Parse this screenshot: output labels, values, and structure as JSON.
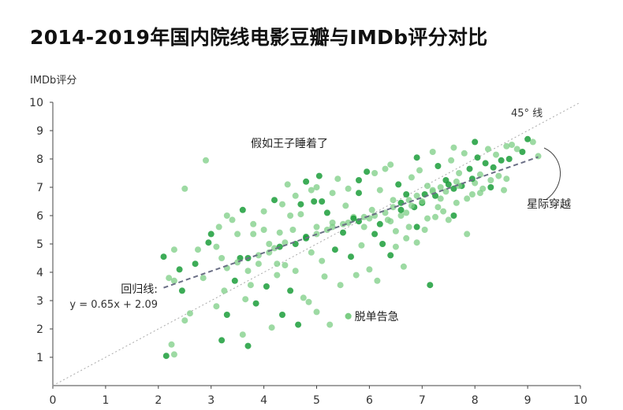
{
  "page": {
    "title": "2014-2019年国内院线电影豆瓣与IMDb评分对比"
  },
  "chart_data": {
    "type": "scatter",
    "title": "2014-2019年国内院线电影豆瓣与IMDb评分对比",
    "xlabel": "",
    "ylabel": "IMDb评分",
    "xlim": [
      0,
      10
    ],
    "ylim": [
      0,
      10
    ],
    "xticks": [
      "0",
      "1",
      "2",
      "3",
      "4",
      "5",
      "6",
      "7",
      "8",
      "9",
      "10"
    ],
    "yticks": [
      "1",
      "2",
      "3",
      "4",
      "5",
      "6",
      "7",
      "8",
      "9",
      "10"
    ],
    "grid": false,
    "colors": {
      "point_dark": "#1b9e3a",
      "point_light": "#7ccd84",
      "regression": "#6b6f86",
      "diagonal": "#aaaaaa"
    },
    "reference_line": {
      "label": "45° 线",
      "slope": 1,
      "intercept": 0
    },
    "regression": {
      "label": "回归线:",
      "equation": "y = 0.65x + 2.09",
      "slope": 0.65,
      "intercept": 2.09,
      "x_range": [
        2.1,
        9.2
      ]
    },
    "annotations": [
      {
        "text": "假如王子睡着了",
        "x": 2.9,
        "y": 7.95
      },
      {
        "text": "脱单告急",
        "x": 5.6,
        "y": 2.45
      },
      {
        "text": "星际穿越",
        "x": 9.2,
        "y": 8.6
      }
    ],
    "series": [
      {
        "values": [
          [
            2.15,
            1.05
          ],
          [
            2.3,
            1.1
          ],
          [
            2.25,
            1.45
          ],
          [
            2.1,
            4.55
          ],
          [
            2.3,
            4.8
          ],
          [
            2.5,
            6.95
          ],
          [
            2.45,
            3.35
          ],
          [
            2.6,
            2.55
          ],
          [
            2.5,
            2.3
          ],
          [
            2.7,
            4.3
          ],
          [
            2.9,
            7.95
          ],
          [
            2.85,
            3.8
          ],
          [
            3.0,
            5.35
          ],
          [
            3.1,
            4.9
          ],
          [
            3.1,
            2.8
          ],
          [
            3.2,
            1.6
          ],
          [
            3.25,
            3.35
          ],
          [
            3.3,
            6.0
          ],
          [
            3.3,
            2.5
          ],
          [
            3.4,
            5.85
          ],
          [
            3.5,
            5.35
          ],
          [
            3.55,
            4.5
          ],
          [
            3.6,
            1.8
          ],
          [
            3.65,
            3.05
          ],
          [
            3.7,
            1.4
          ],
          [
            3.7,
            4.05
          ],
          [
            3.8,
            5.35
          ],
          [
            3.85,
            2.9
          ],
          [
            3.9,
            4.3
          ],
          [
            4.0,
            6.15
          ],
          [
            4.05,
            3.5
          ],
          [
            4.1,
            5.0
          ],
          [
            4.15,
            2.05
          ],
          [
            4.2,
            6.55
          ],
          [
            4.25,
            3.9
          ],
          [
            4.3,
            5.4
          ],
          [
            4.35,
            2.5
          ],
          [
            4.4,
            4.25
          ],
          [
            4.45,
            7.1
          ],
          [
            4.5,
            3.35
          ],
          [
            4.55,
            5.5
          ],
          [
            4.6,
            4.05
          ],
          [
            4.65,
            2.15
          ],
          [
            4.7,
            6.05
          ],
          [
            4.75,
            3.1
          ],
          [
            4.8,
            5.2
          ],
          [
            4.85,
            2.95
          ],
          [
            4.9,
            4.7
          ],
          [
            4.95,
            6.5
          ],
          [
            5.0,
            2.6
          ],
          [
            5.0,
            5.6
          ],
          [
            5.05,
            7.4
          ],
          [
            5.1,
            4.4
          ],
          [
            5.15,
            3.85
          ],
          [
            5.2,
            6.1
          ],
          [
            5.25,
            2.15
          ],
          [
            5.3,
            5.75
          ],
          [
            5.35,
            4.8
          ],
          [
            5.4,
            7.3
          ],
          [
            5.45,
            3.55
          ],
          [
            5.5,
            5.4
          ],
          [
            5.55,
            6.35
          ],
          [
            5.6,
            2.45
          ],
          [
            5.65,
            4.55
          ],
          [
            5.7,
            5.95
          ],
          [
            5.75,
            3.9
          ],
          [
            5.8,
            6.8
          ],
          [
            5.85,
            4.95
          ],
          [
            5.9,
            5.6
          ],
          [
            5.95,
            7.55
          ],
          [
            6.0,
            4.1
          ],
          [
            6.05,
            6.2
          ],
          [
            6.1,
            5.35
          ],
          [
            6.15,
            3.7
          ],
          [
            6.2,
            6.9
          ],
          [
            6.25,
            5.0
          ],
          [
            6.3,
            7.65
          ],
          [
            6.35,
            5.85
          ],
          [
            6.4,
            4.6
          ],
          [
            6.45,
            6.55
          ],
          [
            6.5,
            5.45
          ],
          [
            6.55,
            7.1
          ],
          [
            6.6,
            6.0
          ],
          [
            6.65,
            4.2
          ],
          [
            6.7,
            6.75
          ],
          [
            6.75,
            5.6
          ],
          [
            6.8,
            7.35
          ],
          [
            6.85,
            6.3
          ],
          [
            6.9,
            5.05
          ],
          [
            6.95,
            7.6
          ],
          [
            7.0,
            6.45
          ],
          [
            7.05,
            5.5
          ],
          [
            7.1,
            7.05
          ],
          [
            7.15,
            3.55
          ],
          [
            7.2,
            6.85
          ],
          [
            7.25,
            5.95
          ],
          [
            7.3,
            7.75
          ],
          [
            7.35,
            6.6
          ],
          [
            7.4,
            6.15
          ],
          [
            7.45,
            7.25
          ],
          [
            7.5,
            5.85
          ],
          [
            7.55,
            7.95
          ],
          [
            7.6,
            6.95
          ],
          [
            7.65,
            6.45
          ],
          [
            7.7,
            7.5
          ],
          [
            7.75,
            7.05
          ],
          [
            7.8,
            8.2
          ],
          [
            7.85,
            5.35
          ],
          [
            7.9,
            7.65
          ],
          [
            7.95,
            6.75
          ],
          [
            8.0,
            7.15
          ],
          [
            8.05,
            8.05
          ],
          [
            8.1,
            7.45
          ],
          [
            8.15,
            6.95
          ],
          [
            8.2,
            7.85
          ],
          [
            8.25,
            8.35
          ],
          [
            8.3,
            7.25
          ],
          [
            8.35,
            7.7
          ],
          [
            8.4,
            8.15
          ],
          [
            8.45,
            7.4
          ],
          [
            8.5,
            7.95
          ],
          [
            8.55,
            6.9
          ],
          [
            8.6,
            8.45
          ],
          [
            8.65,
            8.0
          ],
          [
            8.7,
            8.5
          ],
          [
            8.8,
            8.35
          ],
          [
            8.9,
            8.25
          ],
          [
            9.1,
            8.6
          ],
          [
            9.2,
            8.1
          ],
          [
            9.0,
            8.7
          ],
          [
            6.3,
            6.1
          ],
          [
            6.45,
            6.3
          ],
          [
            6.6,
            6.45
          ],
          [
            6.75,
            6.55
          ],
          [
            6.9,
            6.7
          ],
          [
            7.05,
            6.75
          ],
          [
            7.2,
            6.9
          ],
          [
            7.35,
            7.0
          ],
          [
            7.5,
            7.1
          ],
          [
            7.65,
            7.2
          ],
          [
            5.5,
            5.7
          ],
          [
            5.7,
            5.9
          ],
          [
            5.9,
            5.95
          ],
          [
            6.1,
            6.0
          ],
          [
            4.8,
            5.25
          ],
          [
            5.0,
            5.35
          ],
          [
            5.2,
            5.5
          ],
          [
            4.6,
            5.0
          ],
          [
            4.4,
            5.05
          ],
          [
            4.2,
            4.85
          ],
          [
            6.2,
            5.7
          ],
          [
            6.4,
            5.8
          ],
          [
            6.0,
            5.9
          ],
          [
            6.6,
            6.2
          ],
          [
            6.8,
            6.35
          ],
          [
            7.0,
            6.5
          ],
          [
            7.25,
            6.7
          ],
          [
            7.45,
            6.85
          ],
          [
            7.7,
            7.05
          ],
          [
            7.95,
            7.3
          ],
          [
            3.3,
            4.15
          ],
          [
            3.5,
            4.35
          ],
          [
            3.7,
            4.5
          ],
          [
            3.9,
            4.6
          ],
          [
            4.1,
            4.7
          ],
          [
            4.3,
            4.9
          ],
          [
            5.3,
            5.6
          ],
          [
            5.6,
            5.75
          ],
          [
            5.8,
            5.8
          ],
          [
            6.7,
            6.1
          ],
          [
            2.3,
            3.7
          ],
          [
            2.4,
            4.1
          ],
          [
            2.2,
            3.8
          ],
          [
            2.75,
            4.8
          ],
          [
            2.95,
            5.05
          ],
          [
            3.2,
            4.5
          ],
          [
            3.15,
            5.6
          ],
          [
            3.45,
            3.7
          ],
          [
            3.75,
            3.55
          ],
          [
            4.25,
            4.3
          ],
          [
            5.1,
            6.5
          ],
          [
            5.3,
            6.8
          ],
          [
            5.6,
            6.95
          ],
          [
            5.8,
            7.25
          ],
          [
            6.1,
            7.5
          ],
          [
            6.4,
            7.8
          ],
          [
            6.9,
            8.05
          ],
          [
            7.2,
            8.25
          ],
          [
            7.6,
            8.4
          ],
          [
            8.0,
            8.6
          ],
          [
            6.5,
            4.9
          ],
          [
            6.7,
            5.2
          ],
          [
            6.9,
            5.6
          ],
          [
            7.1,
            5.9
          ],
          [
            7.3,
            6.3
          ],
          [
            7.6,
            6.0
          ],
          [
            7.85,
            6.6
          ],
          [
            8.1,
            6.8
          ],
          [
            8.3,
            7.0
          ],
          [
            8.6,
            7.3
          ],
          [
            4.5,
            6.0
          ],
          [
            4.7,
            6.4
          ],
          [
            4.9,
            6.9
          ],
          [
            5.0,
            7.0
          ],
          [
            4.8,
            7.2
          ],
          [
            4.0,
            5.5
          ],
          [
            3.8,
            5.7
          ],
          [
            3.6,
            6.2
          ],
          [
            4.35,
            6.4
          ],
          [
            4.6,
            6.7
          ]
        ]
      }
    ]
  }
}
